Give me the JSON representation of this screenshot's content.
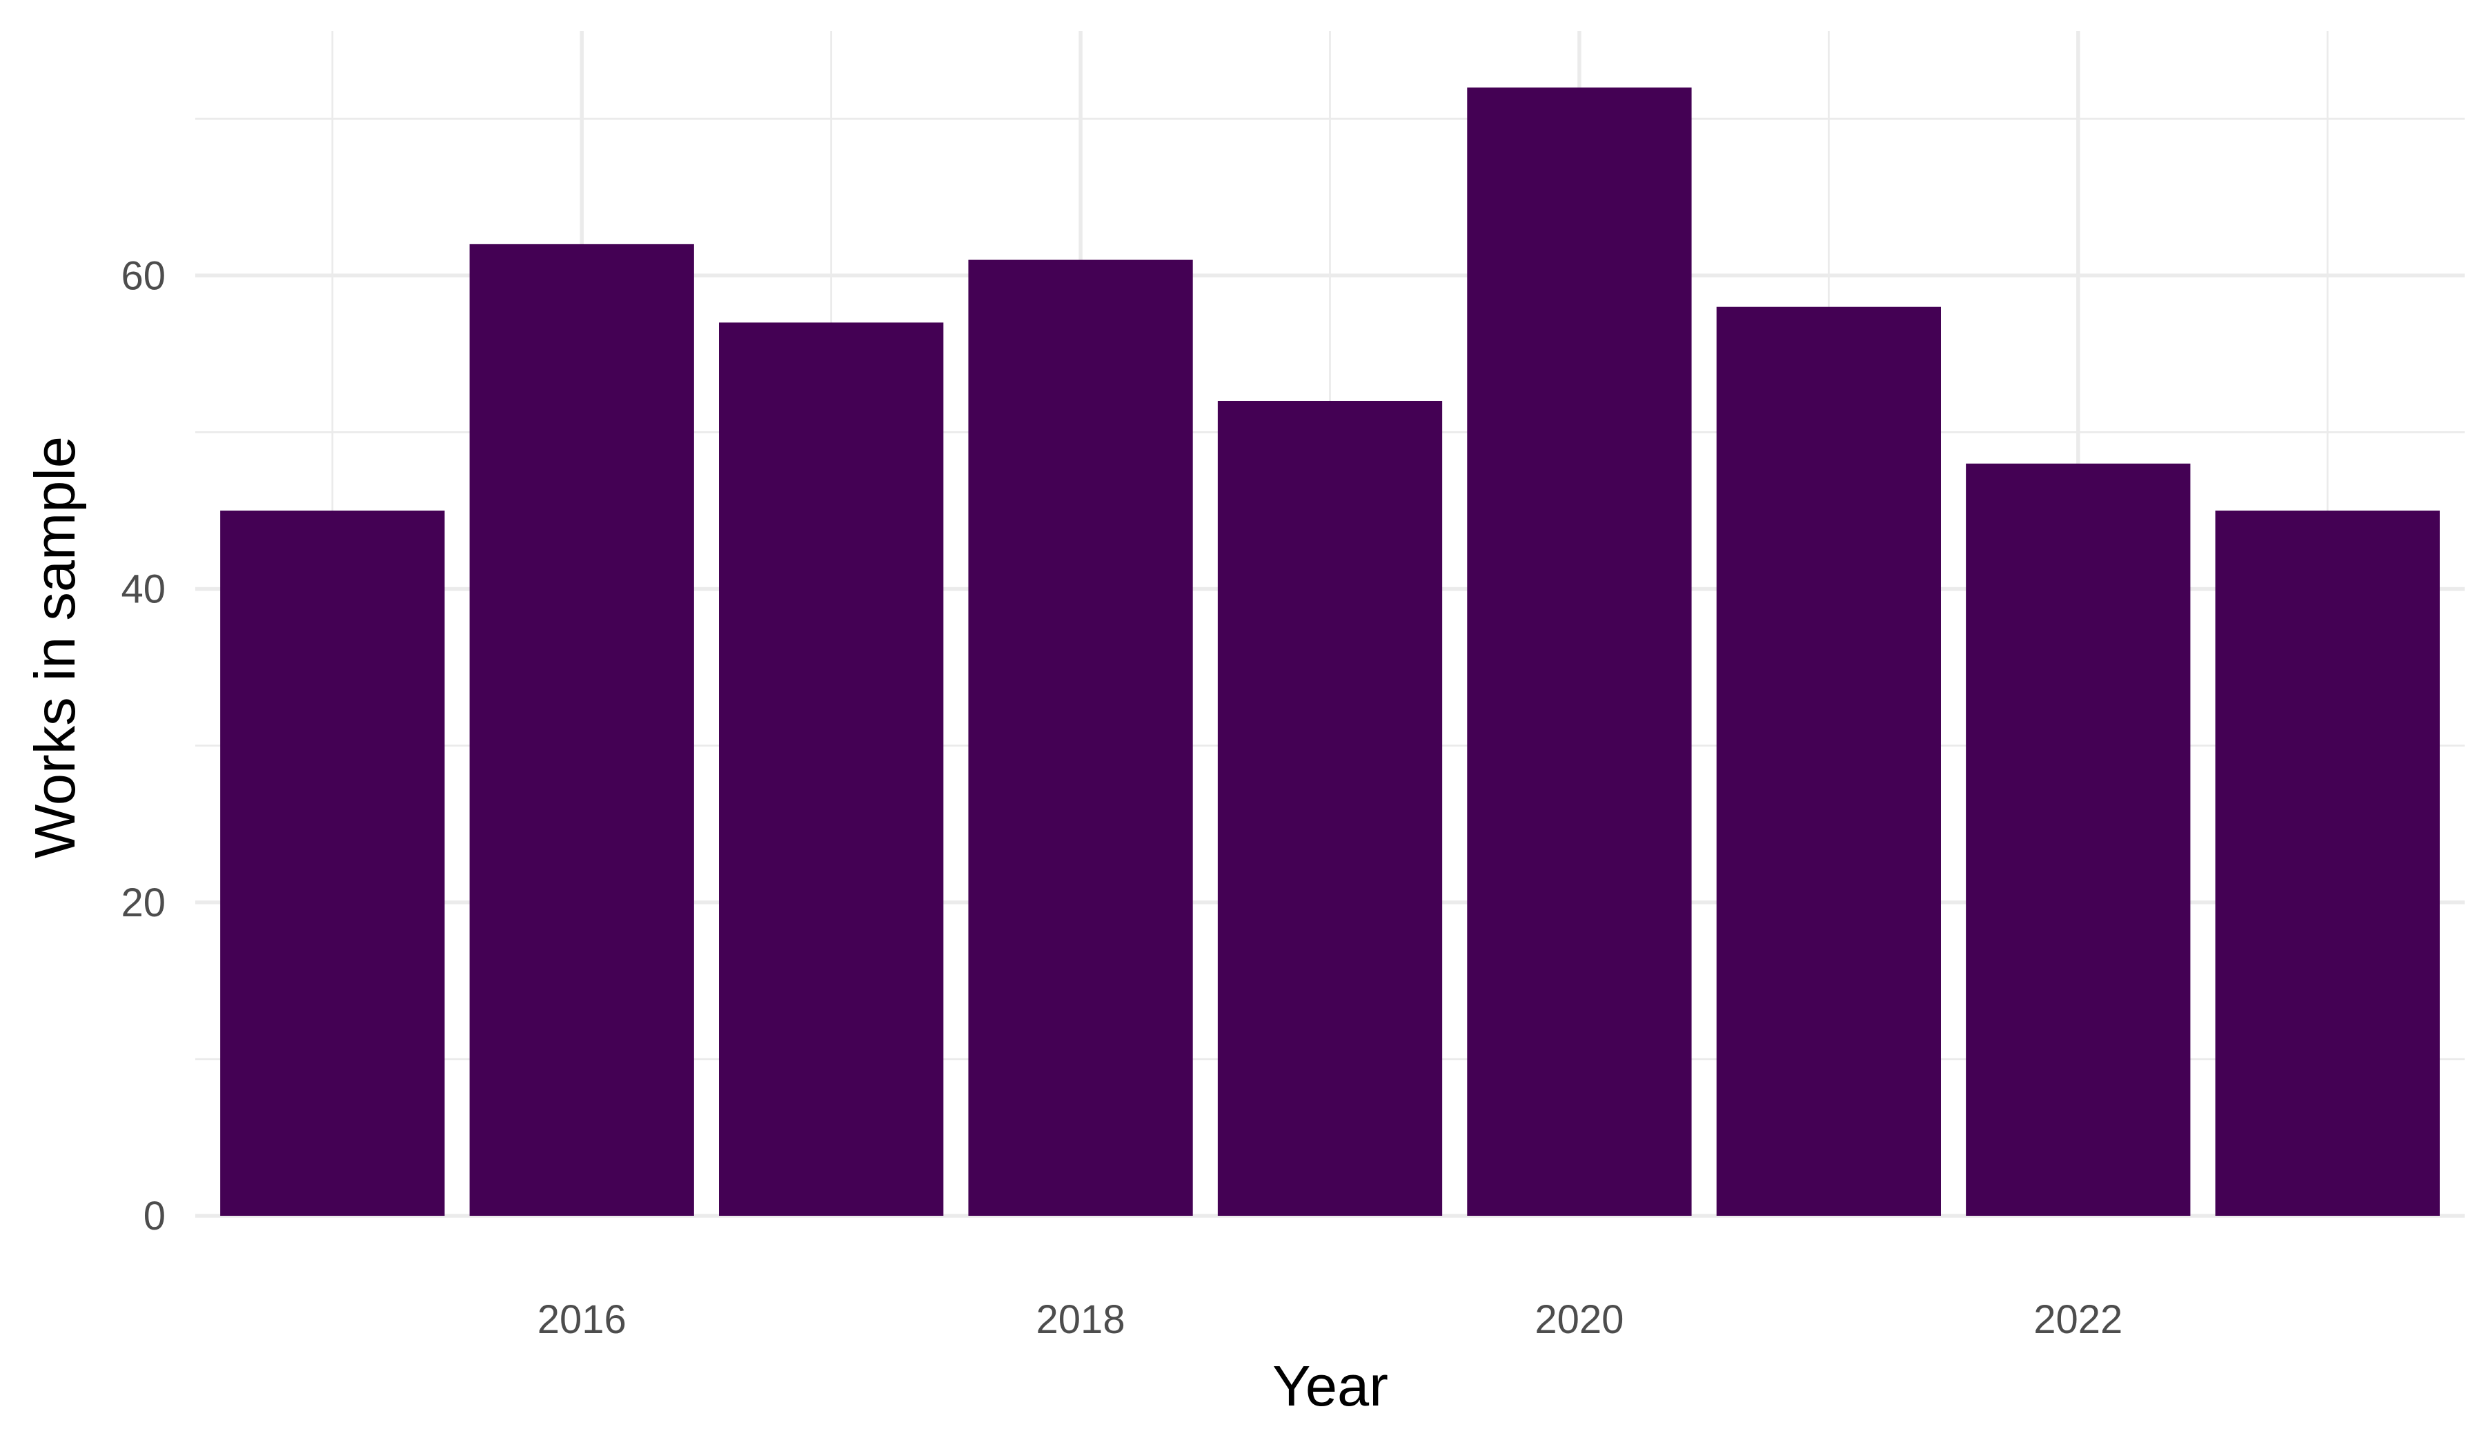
{
  "chart_data": {
    "type": "bar",
    "categories": [
      2015,
      2016,
      2017,
      2018,
      2019,
      2020,
      2021,
      2022,
      2023
    ],
    "values": [
      45,
      62,
      57,
      61,
      52,
      72,
      58,
      48,
      45
    ],
    "xlabel": "Year",
    "ylabel": "Works in sample",
    "xlim": [
      2014.45,
      2023.55
    ],
    "ylim": [
      0,
      75.6
    ],
    "x_ticks": [
      2016,
      2018,
      2020,
      2022
    ],
    "x_tick_labels": [
      "2016",
      "2018",
      "2020",
      "2022"
    ],
    "x_minor_ticks": [
      2015,
      2017,
      2019,
      2021,
      2023
    ],
    "y_ticks": [
      0,
      20,
      40,
      60
    ],
    "y_tick_labels": [
      "0",
      "20",
      "40",
      "60"
    ],
    "y_minor_ticks": [
      10,
      30,
      50,
      70
    ],
    "bar_color": "#440154",
    "grid": true,
    "legend": "none"
  }
}
